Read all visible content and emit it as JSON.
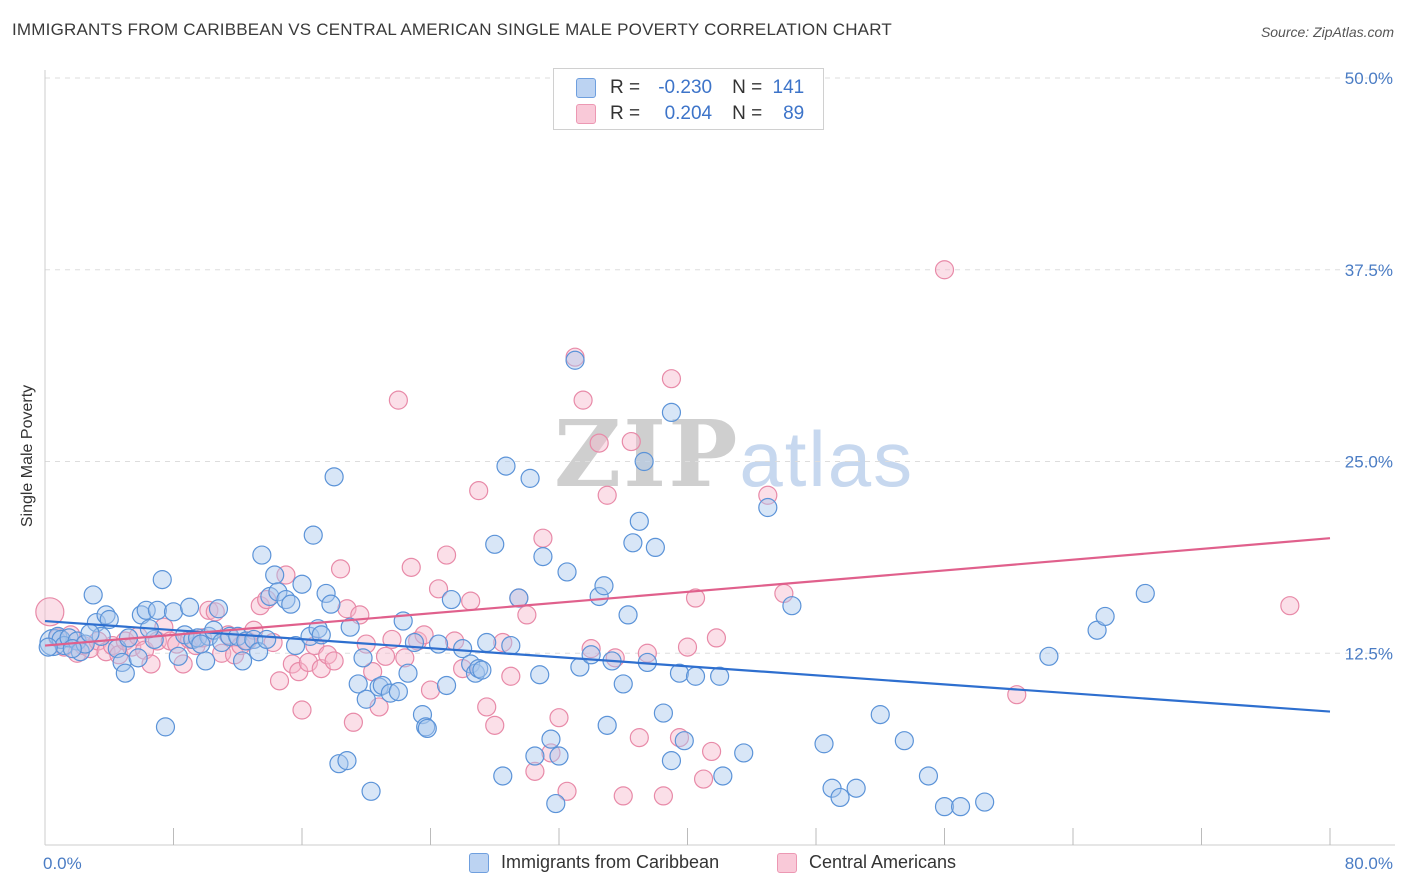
{
  "header": {
    "title": "IMMIGRANTS FROM CARIBBEAN VS CENTRAL AMERICAN SINGLE MALE POVERTY CORRELATION CHART",
    "source": "Source: ZipAtlas.com"
  },
  "watermark": {
    "zip": "ZIP",
    "atlas": "atlas"
  },
  "colors": {
    "blue_fill": "#a9c7ee",
    "blue_stroke": "#5b93d8",
    "blue_line": "#2e6fcf",
    "pink_fill": "#f6b8cc",
    "pink_stroke": "#e88aa8",
    "pink_line": "#e0608c",
    "grid": "#dddddd",
    "axis_text": "#4a7cc4"
  },
  "legend": {
    "rows": [
      {
        "r_label": "R =",
        "r_value": "-0.230",
        "n_label": "N =",
        "n_value": "141"
      },
      {
        "r_label": "R =",
        "r_value": "0.204",
        "n_label": "N =",
        "n_value": "89"
      }
    ]
  },
  "bottom_legend": {
    "items": [
      {
        "label": "Immigrants from Caribbean"
      },
      {
        "label": "Central Americans"
      }
    ]
  },
  "chart_data": {
    "type": "scatter",
    "title": "IMMIGRANTS FROM CARIBBEAN VS CENTRAL AMERICAN SINGLE MALE POVERTY CORRELATION CHART",
    "xlabel": "",
    "ylabel": "Single Male Poverty",
    "xlim": [
      0,
      80
    ],
    "ylim": [
      0,
      50
    ],
    "x_tick_labels": [
      "0.0%",
      "80.0%"
    ],
    "y_ticks": [
      12.5,
      25.0,
      37.5,
      50.0
    ],
    "y_tick_labels": [
      "12.5%",
      "25.0%",
      "37.5%",
      "50.0%"
    ],
    "grid": true,
    "series": [
      {
        "name": "Immigrants from Caribbean",
        "color": "blue",
        "trend": {
          "x": [
            0,
            80
          ],
          "y": [
            14.6,
            8.7
          ]
        },
        "points": [
          [
            0.5,
            13.2
          ],
          [
            0.8,
            13.6
          ],
          [
            1.0,
            13.4
          ],
          [
            1.2,
            13.0
          ],
          [
            1.5,
            13.5
          ],
          [
            2.0,
            13.3
          ],
          [
            2.2,
            12.6
          ],
          [
            2.5,
            13.1
          ],
          [
            3.0,
            16.3
          ],
          [
            3.2,
            14.5
          ],
          [
            3.5,
            13.6
          ],
          [
            3.8,
            15.0
          ],
          [
            4.0,
            14.7
          ],
          [
            4.5,
            12.8
          ],
          [
            4.8,
            11.9
          ],
          [
            5.0,
            11.2
          ],
          [
            5.2,
            13.5
          ],
          [
            5.8,
            12.2
          ],
          [
            6.0,
            15.0
          ],
          [
            6.3,
            15.3
          ],
          [
            6.8,
            13.4
          ],
          [
            7.0,
            15.3
          ],
          [
            7.3,
            17.3
          ],
          [
            7.5,
            7.7
          ],
          [
            8.0,
            15.2
          ],
          [
            8.3,
            12.3
          ],
          [
            8.7,
            13.7
          ],
          [
            9.0,
            15.5
          ],
          [
            9.2,
            13.4
          ],
          [
            9.5,
            13.5
          ],
          [
            10.0,
            12.0
          ],
          [
            10.2,
            13.6
          ],
          [
            10.5,
            14.0
          ],
          [
            10.8,
            15.4
          ],
          [
            11.0,
            13.2
          ],
          [
            11.5,
            13.6
          ],
          [
            12.0,
            13.6
          ],
          [
            12.3,
            12.0
          ],
          [
            12.5,
            13.3
          ],
          [
            13.0,
            13.4
          ],
          [
            13.3,
            12.6
          ],
          [
            13.5,
            18.9
          ],
          [
            13.8,
            13.4
          ],
          [
            14.0,
            16.2
          ],
          [
            14.3,
            17.6
          ],
          [
            14.5,
            16.5
          ],
          [
            15.0,
            16.0
          ],
          [
            15.3,
            15.7
          ],
          [
            15.6,
            13.0
          ],
          [
            16.0,
            17.0
          ],
          [
            16.5,
            13.6
          ],
          [
            16.7,
            20.2
          ],
          [
            17.0,
            14.1
          ],
          [
            17.2,
            13.7
          ],
          [
            17.5,
            16.4
          ],
          [
            17.8,
            15.7
          ],
          [
            18.0,
            24.0
          ],
          [
            18.3,
            5.3
          ],
          [
            18.8,
            5.5
          ],
          [
            19.0,
            14.2
          ],
          [
            19.5,
            10.5
          ],
          [
            19.8,
            12.2
          ],
          [
            20.0,
            9.5
          ],
          [
            20.3,
            3.5
          ],
          [
            20.8,
            10.3
          ],
          [
            21.0,
            10.4
          ],
          [
            21.5,
            9.9
          ],
          [
            22.0,
            10.0
          ],
          [
            22.3,
            14.6
          ],
          [
            22.6,
            11.2
          ],
          [
            23.0,
            13.2
          ],
          [
            23.5,
            8.5
          ],
          [
            23.7,
            7.7
          ],
          [
            23.8,
            7.6
          ],
          [
            24.5,
            13.1
          ],
          [
            25.0,
            10.4
          ],
          [
            25.3,
            16.0
          ],
          [
            26.0,
            12.8
          ],
          [
            26.5,
            11.8
          ],
          [
            26.8,
            11.2
          ],
          [
            27.0,
            11.5
          ],
          [
            27.2,
            11.4
          ],
          [
            27.5,
            13.2
          ],
          [
            28.0,
            19.6
          ],
          [
            28.5,
            4.5
          ],
          [
            28.7,
            24.7
          ],
          [
            29.0,
            13.0
          ],
          [
            29.5,
            16.1
          ],
          [
            30.2,
            23.9
          ],
          [
            30.5,
            5.8
          ],
          [
            30.8,
            11.1
          ],
          [
            31.0,
            18.8
          ],
          [
            31.5,
            6.9
          ],
          [
            31.8,
            2.7
          ],
          [
            32.0,
            5.8
          ],
          [
            32.5,
            17.8
          ],
          [
            33.0,
            31.6
          ],
          [
            33.3,
            11.6
          ],
          [
            34.0,
            12.4
          ],
          [
            34.5,
            16.2
          ],
          [
            34.8,
            16.9
          ],
          [
            35.0,
            7.8
          ],
          [
            35.3,
            12.0
          ],
          [
            36.0,
            10.5
          ],
          [
            36.3,
            15.0
          ],
          [
            36.6,
            19.7
          ],
          [
            37.0,
            21.1
          ],
          [
            37.3,
            25.0
          ],
          [
            37.5,
            11.9
          ],
          [
            38.0,
            19.4
          ],
          [
            38.5,
            8.6
          ],
          [
            39.0,
            28.2
          ],
          [
            39.0,
            5.5
          ],
          [
            39.5,
            11.2
          ],
          [
            39.8,
            6.8
          ],
          [
            40.5,
            11.0
          ],
          [
            42.0,
            11.0
          ],
          [
            42.2,
            4.5
          ],
          [
            43.5,
            6.0
          ],
          [
            45.0,
            22.0
          ],
          [
            46.5,
            15.6
          ],
          [
            48.5,
            6.6
          ],
          [
            49.0,
            3.7
          ],
          [
            49.5,
            3.1
          ],
          [
            50.5,
            3.7
          ],
          [
            52.0,
            8.5
          ],
          [
            53.5,
            6.8
          ],
          [
            55.0,
            4.5
          ],
          [
            56.0,
            2.5
          ],
          [
            57.0,
            2.5
          ],
          [
            58.5,
            2.8
          ],
          [
            62.5,
            12.3
          ],
          [
            65.5,
            14.0
          ],
          [
            66.0,
            14.9
          ],
          [
            68.5,
            16.4
          ],
          [
            0.2,
            12.9
          ],
          [
            1.7,
            12.8
          ],
          [
            2.8,
            13.8
          ],
          [
            6.5,
            14.1
          ],
          [
            9.7,
            13.1
          ]
        ]
      },
      {
        "name": "Central Americans",
        "color": "pink",
        "trend": {
          "x": [
            0,
            80
          ],
          "y": [
            13.0,
            20.0
          ]
        },
        "points": [
          [
            0.3,
            15.2
          ],
          [
            0.8,
            13.5
          ],
          [
            1.2,
            12.9
          ],
          [
            1.6,
            13.7
          ],
          [
            2.0,
            12.5
          ],
          [
            2.4,
            13.0
          ],
          [
            2.8,
            12.8
          ],
          [
            3.3,
            13.3
          ],
          [
            3.8,
            12.6
          ],
          [
            4.2,
            13.0
          ],
          [
            4.6,
            12.4
          ],
          [
            5.0,
            13.3
          ],
          [
            5.4,
            12.9
          ],
          [
            5.8,
            13.6
          ],
          [
            6.2,
            12.7
          ],
          [
            6.6,
            11.8
          ],
          [
            7.0,
            13.3
          ],
          [
            7.4,
            14.2
          ],
          [
            7.8,
            13.3
          ],
          [
            8.2,
            13.1
          ],
          [
            8.6,
            11.8
          ],
          [
            9.0,
            13.4
          ],
          [
            9.4,
            13.0
          ],
          [
            9.8,
            13.5
          ],
          [
            10.2,
            15.3
          ],
          [
            10.6,
            15.2
          ],
          [
            11.0,
            12.5
          ],
          [
            11.4,
            13.7
          ],
          [
            11.8,
            12.4
          ],
          [
            12.2,
            13.0
          ],
          [
            12.6,
            13.3
          ],
          [
            13.0,
            14.0
          ],
          [
            13.4,
            15.6
          ],
          [
            13.8,
            16.0
          ],
          [
            14.2,
            13.2
          ],
          [
            14.6,
            10.7
          ],
          [
            15.0,
            17.6
          ],
          [
            15.4,
            11.8
          ],
          [
            15.8,
            11.3
          ],
          [
            16.0,
            8.8
          ],
          [
            16.4,
            11.9
          ],
          [
            16.8,
            13.0
          ],
          [
            17.2,
            11.5
          ],
          [
            17.6,
            12.4
          ],
          [
            18.0,
            12.0
          ],
          [
            18.4,
            18.0
          ],
          [
            18.8,
            15.4
          ],
          [
            19.2,
            8.0
          ],
          [
            19.6,
            15.0
          ],
          [
            20.0,
            13.1
          ],
          [
            20.4,
            11.3
          ],
          [
            20.8,
            9.0
          ],
          [
            21.2,
            12.3
          ],
          [
            21.6,
            13.4
          ],
          [
            22.0,
            29.0
          ],
          [
            22.4,
            12.2
          ],
          [
            22.8,
            18.1
          ],
          [
            23.2,
            13.3
          ],
          [
            23.6,
            13.7
          ],
          [
            24.0,
            10.1
          ],
          [
            24.5,
            16.7
          ],
          [
            25.0,
            18.9
          ],
          [
            25.5,
            13.3
          ],
          [
            26.0,
            11.5
          ],
          [
            26.5,
            15.9
          ],
          [
            27.0,
            23.1
          ],
          [
            27.5,
            9.0
          ],
          [
            28.0,
            7.8
          ],
          [
            28.5,
            13.2
          ],
          [
            29.0,
            11.0
          ],
          [
            29.5,
            16.1
          ],
          [
            30.0,
            15.0
          ],
          [
            30.5,
            4.8
          ],
          [
            31.0,
            20.0
          ],
          [
            31.5,
            6.0
          ],
          [
            32.0,
            8.3
          ],
          [
            32.5,
            3.5
          ],
          [
            33.0,
            31.8
          ],
          [
            33.5,
            29.0
          ],
          [
            34.0,
            12.8
          ],
          [
            34.5,
            26.2
          ],
          [
            35.0,
            22.8
          ],
          [
            35.5,
            12.2
          ],
          [
            36.0,
            3.2
          ],
          [
            36.5,
            26.3
          ],
          [
            37.0,
            7.0
          ],
          [
            37.5,
            12.5
          ],
          [
            38.5,
            3.2
          ],
          [
            39.0,
            30.4
          ],
          [
            39.5,
            7.0
          ],
          [
            40.0,
            12.9
          ],
          [
            40.5,
            16.1
          ],
          [
            41.0,
            4.3
          ],
          [
            41.5,
            6.1
          ],
          [
            41.8,
            13.5
          ],
          [
            45.0,
            22.8
          ],
          [
            46.0,
            16.4
          ],
          [
            56.0,
            37.5
          ],
          [
            60.5,
            9.8
          ],
          [
            77.5,
            15.6
          ]
        ]
      }
    ]
  }
}
